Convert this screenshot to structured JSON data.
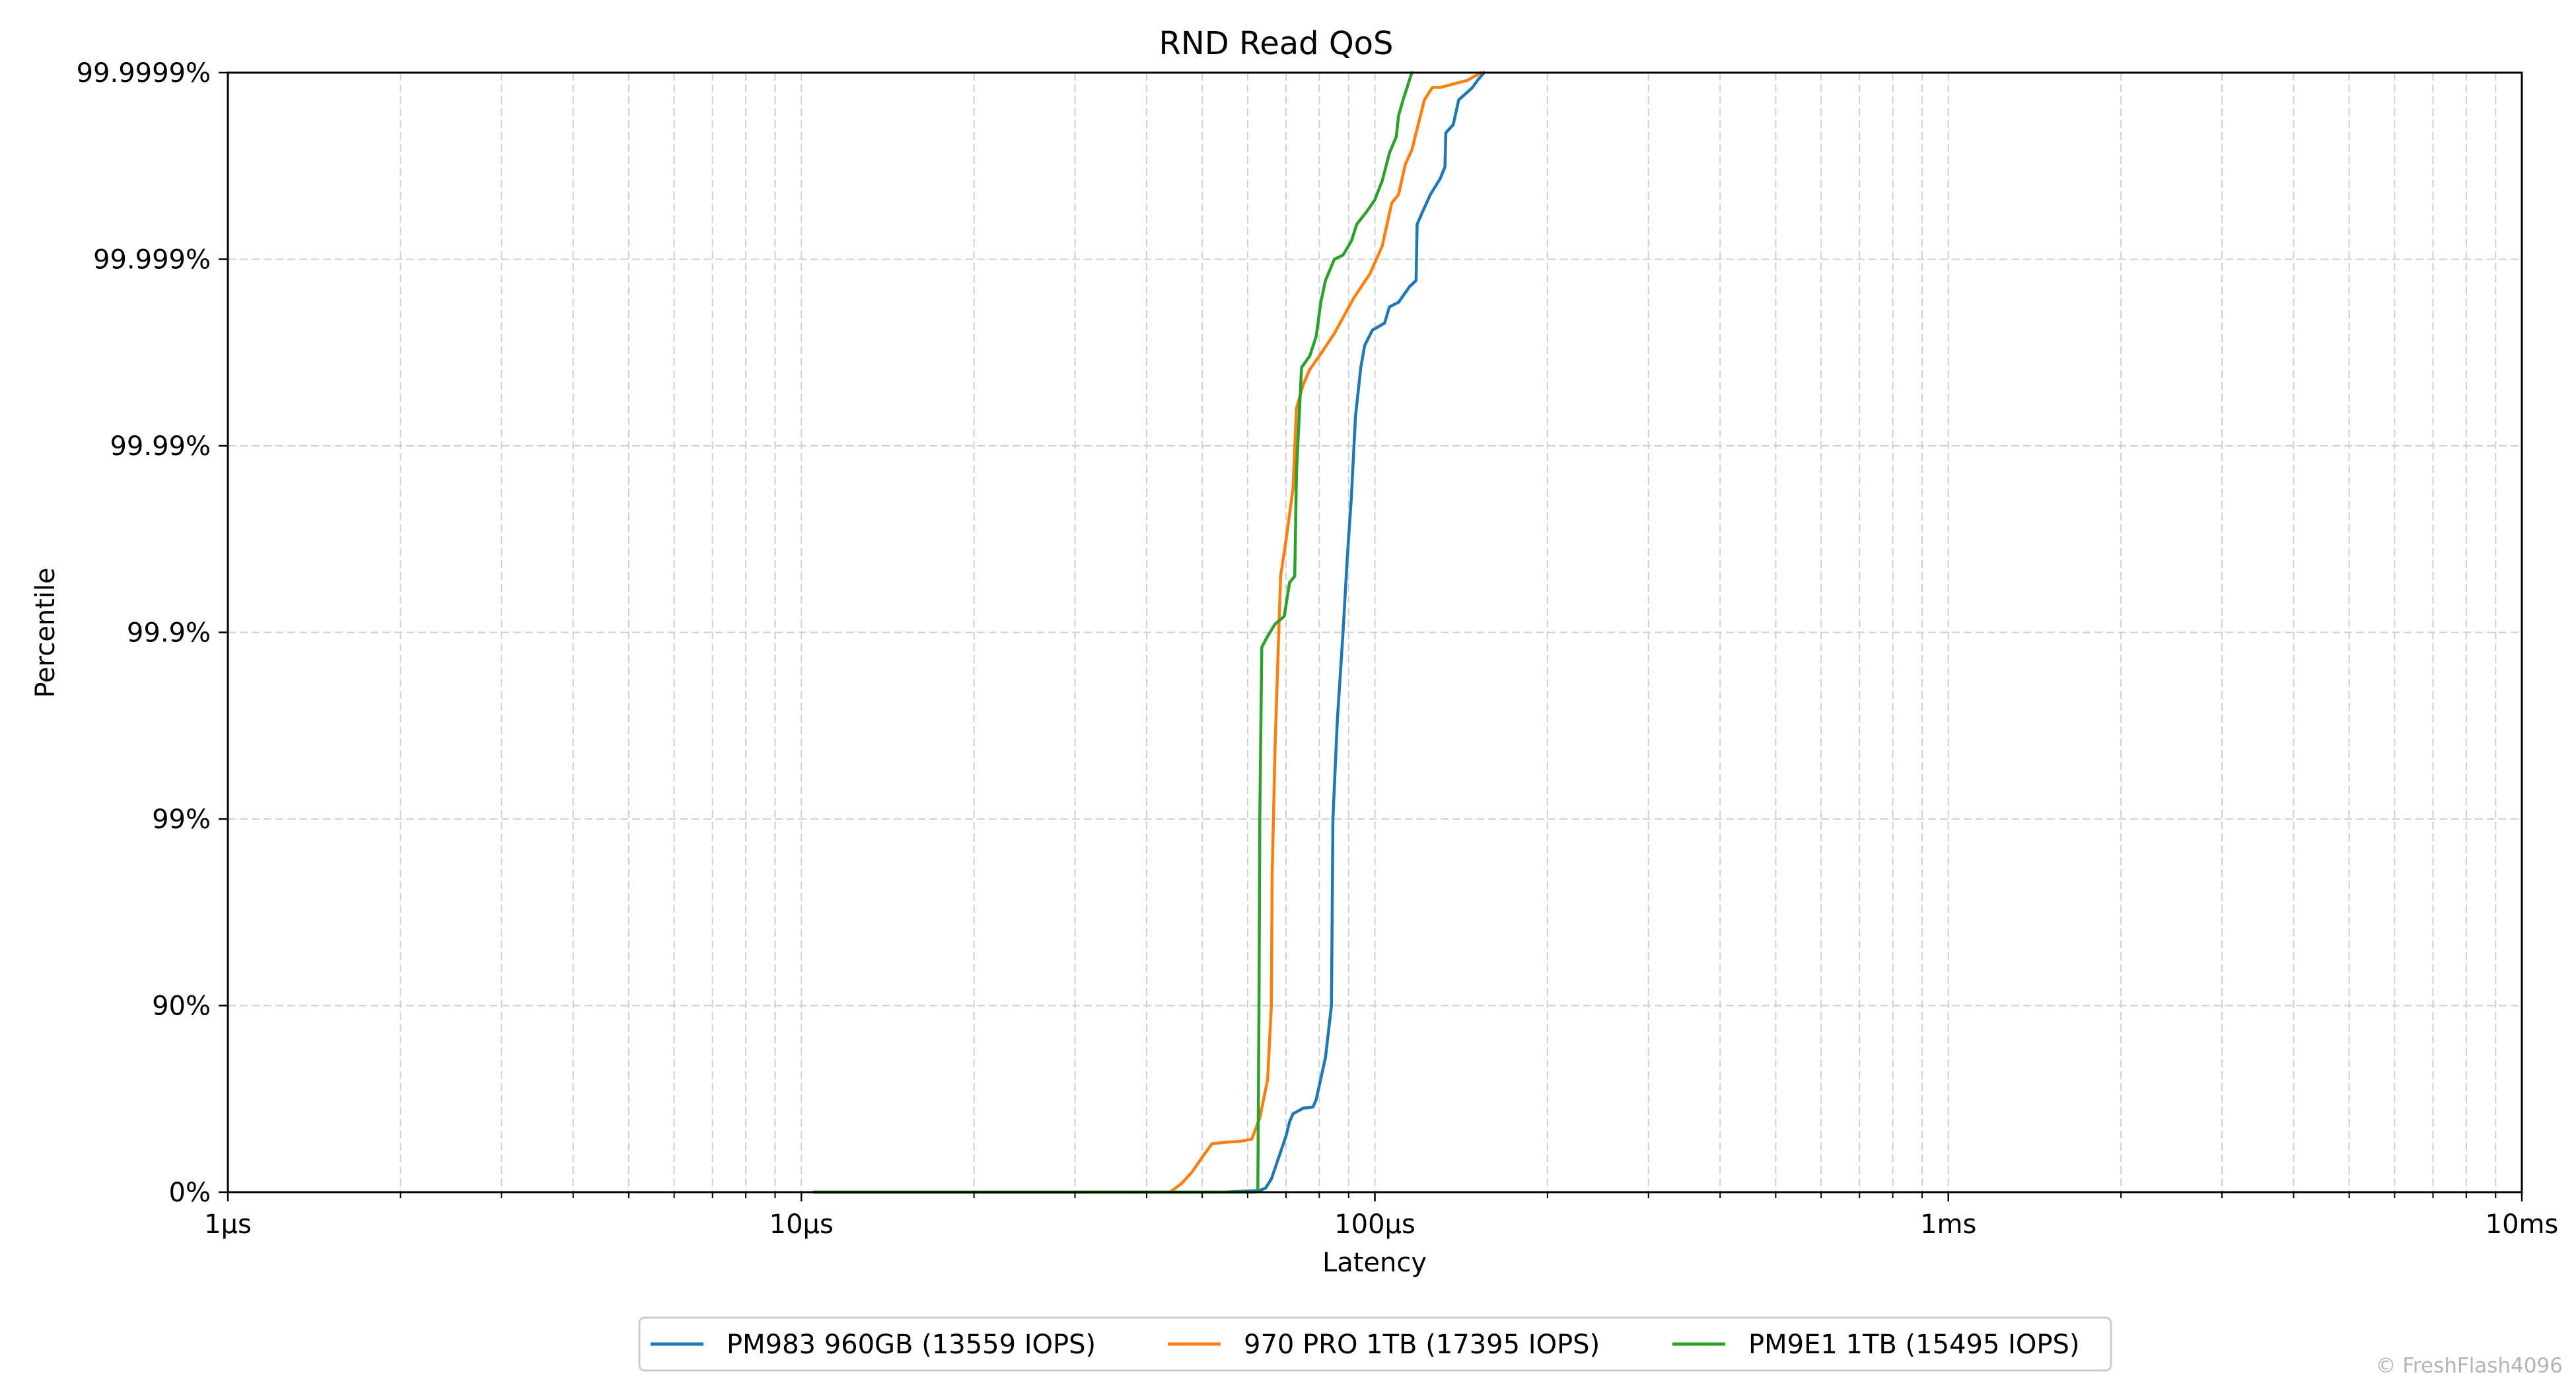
{
  "chart_data": {
    "type": "line",
    "title": "RND Read QoS",
    "xlabel": "Latency",
    "ylabel": "Percentile",
    "x_scale": "log",
    "x_unit": "µs",
    "xlim": [
      1,
      10000
    ],
    "x_ticks": [
      {
        "value": 1,
        "label": "1µs"
      },
      {
        "value": 10,
        "label": "10µs"
      },
      {
        "value": 100,
        "label": "100µs"
      },
      {
        "value": 1000,
        "label": "1ms"
      },
      {
        "value": 10000,
        "label": "10ms"
      }
    ],
    "y_scale": "nines",
    "y_ticks": [
      {
        "value": 0,
        "label": "0%"
      },
      {
        "value": 90,
        "label": "90%"
      },
      {
        "value": 99,
        "label": "99%"
      },
      {
        "value": 99.9,
        "label": "99.9%"
      },
      {
        "value": 99.99,
        "label": "99.99%"
      },
      {
        "value": 99.999,
        "label": "99.999%"
      },
      {
        "value": 99.9999,
        "label": "99.9999%"
      }
    ],
    "grid": true,
    "legend_position": "bottom-center",
    "watermark": "© FreshFlash4096",
    "series": [
      {
        "name": "PM983 960GB (13559 IOPS)",
        "color": "#1f77b4",
        "points": [
          [
            10.5,
            0
          ],
          [
            40,
            0
          ],
          [
            55,
            0.1
          ],
          [
            63,
            2
          ],
          [
            64.5,
            5
          ],
          [
            66,
            15
          ],
          [
            68,
            35
          ],
          [
            70,
            50
          ],
          [
            71,
            58
          ],
          [
            72,
            62
          ],
          [
            75,
            64.5
          ],
          [
            78,
            65
          ],
          [
            79,
            68
          ],
          [
            82,
            81
          ],
          [
            84,
            90
          ],
          [
            84.5,
            99
          ],
          [
            86,
            99.7
          ],
          [
            88,
            99.9
          ],
          [
            89.5,
            99.96
          ],
          [
            91,
            99.981
          ],
          [
            92.5,
            99.993
          ],
          [
            94.5,
            99.9962
          ],
          [
            96,
            99.9971
          ],
          [
            99,
            99.9976
          ],
          [
            104,
            99.9978
          ],
          [
            106,
            99.9982
          ],
          [
            110,
            99.9983
          ],
          [
            115,
            99.9986
          ],
          [
            118,
            99.9987
          ],
          [
            118.5,
            99.99935
          ],
          [
            121,
            99.99944
          ],
          [
            125,
            99.99955
          ],
          [
            130,
            99.99963
          ],
          [
            132.5,
            99.99968
          ],
          [
            133,
            99.99979
          ],
          [
            137,
            99.99981
          ],
          [
            140,
            99.99986
          ],
          [
            148,
            99.99988
          ],
          [
            151,
            99.99989
          ],
          [
            155,
            99.9999
          ]
        ]
      },
      {
        "name": "970 PRO 1TB (17395 IOPS)",
        "color": "#ff7f0e",
        "points": [
          [
            10.5,
            0
          ],
          [
            30,
            0
          ],
          [
            44,
            0.3
          ],
          [
            46,
            10
          ],
          [
            48,
            22
          ],
          [
            50,
            35
          ],
          [
            52,
            45
          ],
          [
            55,
            46
          ],
          [
            58,
            46.5
          ],
          [
            61,
            48
          ],
          [
            63,
            60
          ],
          [
            65,
            75
          ],
          [
            66,
            90
          ],
          [
            66.2,
            98
          ],
          [
            67,
            99.6
          ],
          [
            68.5,
            99.95
          ],
          [
            70,
            99.968
          ],
          [
            72,
            99.983
          ],
          [
            73,
            99.9937
          ],
          [
            75,
            99.9953
          ],
          [
            77,
            99.9961
          ],
          [
            80,
            99.9967
          ],
          [
            85,
            99.9975
          ],
          [
            92,
            99.9984
          ],
          [
            98,
            99.9988
          ],
          [
            103,
            99.99915
          ],
          [
            107,
            99.9995
          ],
          [
            110,
            99.99955
          ],
          [
            113,
            99.99969
          ],
          [
            116,
            99.99974
          ],
          [
            119,
            99.99981
          ],
          [
            122,
            99.99986
          ],
          [
            126,
            99.99988
          ],
          [
            130,
            99.99988
          ],
          [
            145,
            99.99989
          ],
          [
            153,
            99.9999
          ]
        ]
      },
      {
        "name": "PM9E1 1TB (15495 IOPS)",
        "color": "#2ca02c",
        "points": [
          [
            10.5,
            0
          ],
          [
            61,
            0.03
          ],
          [
            62,
            0.1
          ],
          [
            62.5,
            0.5
          ],
          [
            62.8,
            90
          ],
          [
            63,
            99
          ],
          [
            63.5,
            99.88
          ],
          [
            65,
            99.895
          ],
          [
            67,
            99.91
          ],
          [
            69.5,
            99.918
          ],
          [
            71,
            99.946
          ],
          [
            72.5,
            99.95
          ],
          [
            73,
            99.986
          ],
          [
            74.5,
            99.9962
          ],
          [
            77,
            99.9967
          ],
          [
            79,
            99.9974
          ],
          [
            80.5,
            99.9983
          ],
          [
            82,
            99.9987
          ],
          [
            85,
            99.999
          ],
          [
            88,
            99.99905
          ],
          [
            91,
            99.9992
          ],
          [
            93,
            99.99935
          ],
          [
            97,
            99.99945
          ],
          [
            100,
            99.99952
          ],
          [
            103,
            99.99962
          ],
          [
            106,
            99.99973
          ],
          [
            109,
            99.99978
          ],
          [
            110,
            99.99983
          ],
          [
            112,
            99.99986
          ],
          [
            116,
            99.9999
          ]
        ]
      }
    ]
  }
}
